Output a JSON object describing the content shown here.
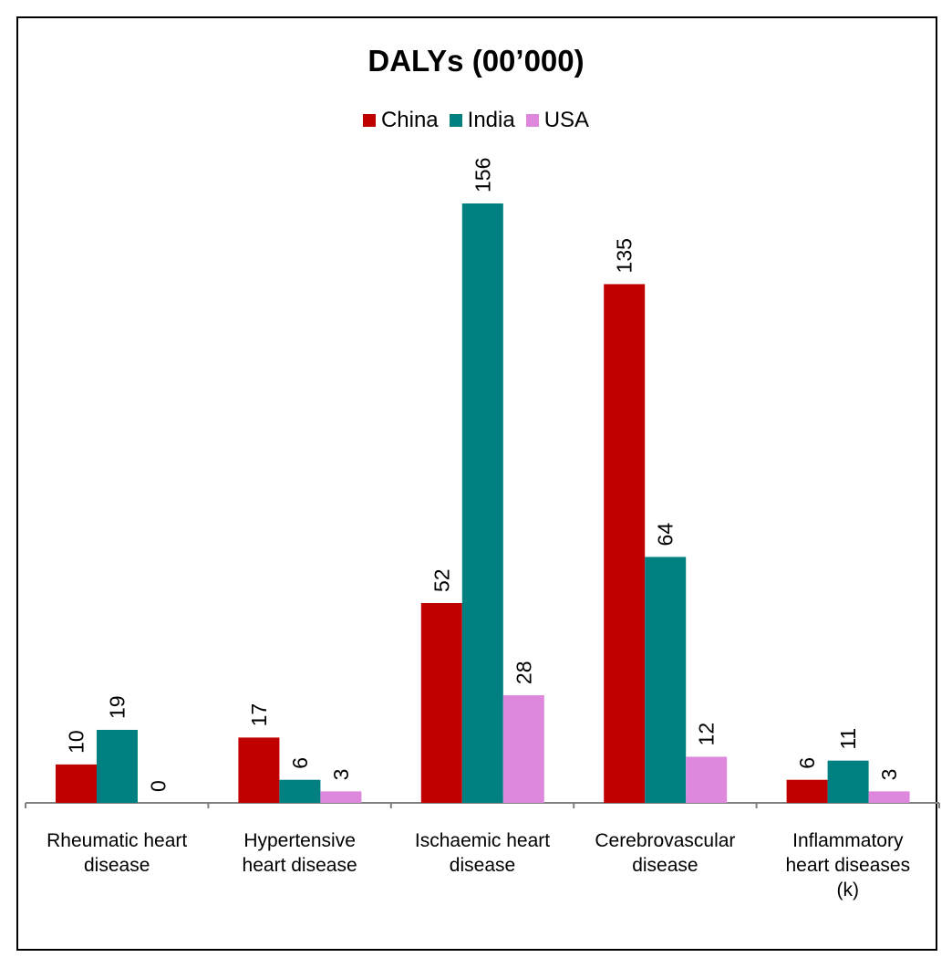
{
  "chart_data": {
    "type": "bar",
    "title": "DALYs (00’000)",
    "categories": [
      [
        "Rheumatic heart",
        "disease"
      ],
      [
        "Hypertensive",
        "heart disease"
      ],
      [
        "Ischaemic heart",
        "disease"
      ],
      [
        "Cerebrovascular",
        "disease"
      ],
      [
        "Inflammatory",
        "heart diseases",
        "(k)"
      ]
    ],
    "series": [
      {
        "name": "China",
        "color": "#c00000",
        "values": [
          10,
          17,
          52,
          135,
          6
        ]
      },
      {
        "name": "India",
        "color": "#008080",
        "values": [
          19,
          6,
          156,
          64,
          11
        ]
      },
      {
        "name": "USA",
        "color": "#dd88dd",
        "values": [
          0,
          3,
          28,
          12,
          3
        ]
      }
    ],
    "data_labels": [
      [
        "10",
        "19",
        "0"
      ],
      [
        "17",
        "6",
        "3"
      ],
      [
        "52",
        "156",
        "28"
      ],
      [
        "135",
        "64",
        "12"
      ],
      [
        "6",
        "11",
        "3"
      ]
    ],
    "ylim": [
      0,
      156
    ],
    "legend_position": "top-center",
    "grid": false,
    "xlabel": "",
    "ylabel": ""
  }
}
